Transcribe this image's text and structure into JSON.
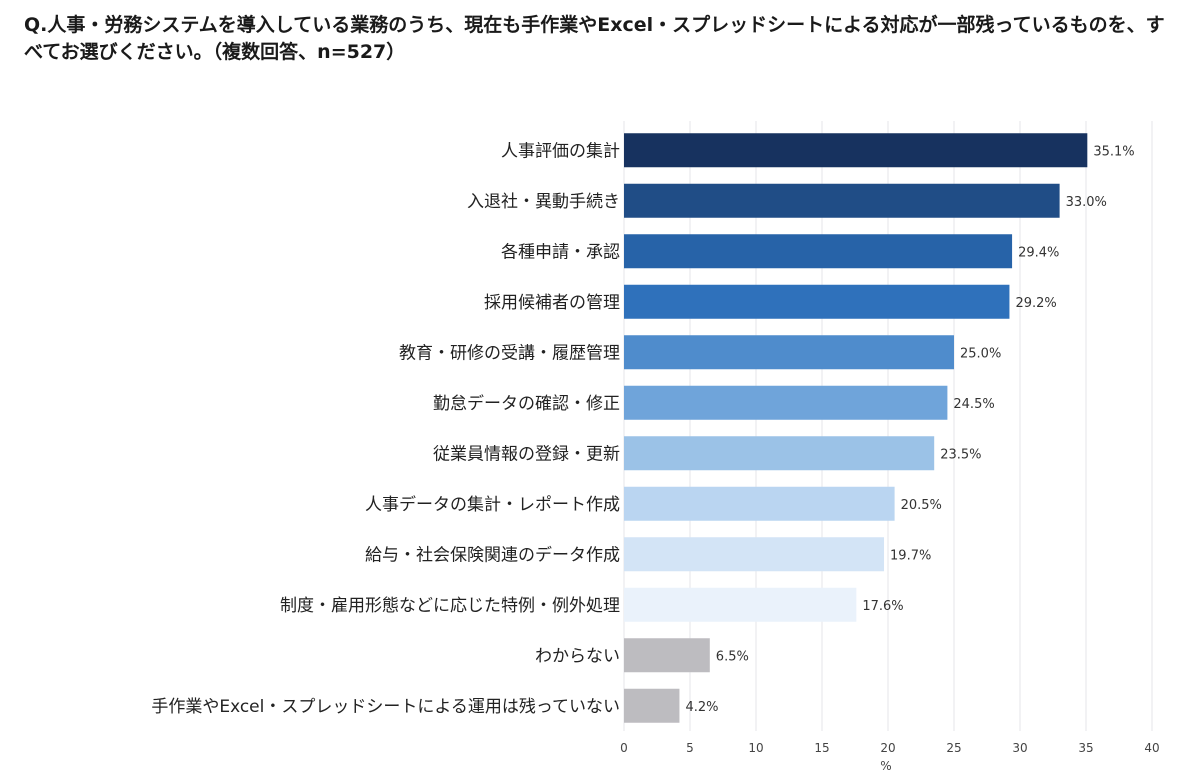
{
  "chart_data": {
    "type": "bar",
    "orientation": "horizontal",
    "title": "Q.人事・労務システムを導入している業務のうち、現在も手作業やExcel・スプレッドシートによる対応が一部残っているものを、すべてお選びください。（複数回答、n=527）",
    "categories": [
      "人事評価の集計",
      "入退社・異動手続き",
      "各種申請・承認",
      "採用候補者の管理",
      "教育・研修の受講・履歴管理",
      "勤怠データの確認・修正",
      "従業員情報の登録・更新",
      "人事データの集計・レポート作成",
      "給与・社会保険関連のデータ作成",
      "制度・雇用形態などに応じた特例・例外処理",
      "わからない",
      "手作業やExcel・スプレッドシートによる運用は残っていない"
    ],
    "values": [
      35.1,
      33.0,
      29.4,
      29.2,
      25.0,
      24.5,
      23.5,
      20.5,
      19.7,
      17.6,
      6.5,
      4.2
    ],
    "value_labels": [
      "35.1%",
      "33.0%",
      "29.4%",
      "29.2%",
      "25.0%",
      "24.5%",
      "23.5%",
      "20.5%",
      "19.7%",
      "17.6%",
      "6.5%",
      "4.2%"
    ],
    "colors": [
      "#17325f",
      "#204d86",
      "#2763a8",
      "#2f71bb",
      "#4f8ccc",
      "#6fa4da",
      "#9bc2e7",
      "#bad5f1",
      "#d3e4f6",
      "#eaf2fb",
      "#bdbcc0",
      "#bdbcc0"
    ],
    "xlabel": "%",
    "xlim": [
      0,
      40
    ],
    "xticks": [
      0,
      5,
      10,
      15,
      20,
      25,
      30,
      35,
      40
    ],
    "grid": true
  }
}
